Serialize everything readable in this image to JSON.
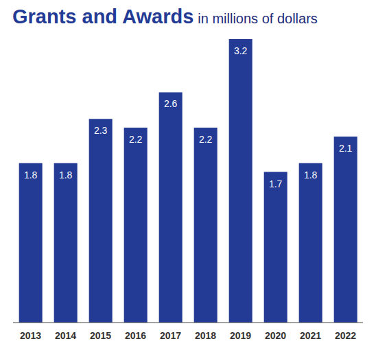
{
  "chart_data": {
    "type": "bar",
    "title": "Grants and Awards",
    "subtitle": "in millions of dollars",
    "categories": [
      "2013",
      "2014",
      "2015",
      "2016",
      "2017",
      "2018",
      "2019",
      "2020",
      "2021",
      "2022"
    ],
    "values": [
      1.8,
      1.8,
      2.3,
      2.2,
      2.6,
      2.2,
      3.2,
      1.7,
      1.8,
      2.1
    ],
    "color": "#233b95",
    "data_labels": true,
    "tick_labels": "x",
    "grid": false
  }
}
